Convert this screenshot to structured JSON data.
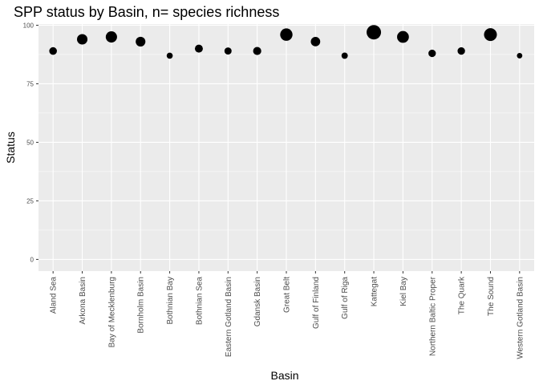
{
  "chart_data": {
    "type": "scatter",
    "title": "SPP status by Basin, n= species richness",
    "xlabel": "Basin",
    "ylabel": "Status",
    "ylim": [
      -5,
      100.5
    ],
    "yticks": [
      0,
      25,
      50,
      75,
      100
    ],
    "grid": true,
    "legend": "none",
    "marker_color": "#000000",
    "panel_color": "#ebebeb",
    "grid_color": "#ffffff",
    "categories": [
      "Aland Sea",
      "Arkona Basin",
      "Bay of Mecklenburg",
      "Bornholm Basin",
      "Bothnian Bay",
      "Bothnian Sea",
      "Eastern Gotland Basin",
      "Gdansk Basin",
      "Great Belt",
      "Gulf of Finland",
      "Gulf of Riga",
      "Kattegat",
      "Kiel Bay",
      "Northern Baltic Proper",
      "The Quark",
      "The Sound",
      "Western Gotland Basin"
    ],
    "values": [
      89,
      94,
      95,
      93,
      87,
      90,
      89,
      89,
      96,
      93,
      87,
      97,
      95,
      88,
      89,
      96,
      87
    ],
    "relative_size": [
      0.35,
      0.62,
      0.7,
      0.55,
      0.2,
      0.38,
      0.3,
      0.4,
      0.8,
      0.52,
      0.22,
      1.0,
      0.75,
      0.33,
      0.33,
      0.85,
      0.14
    ]
  }
}
